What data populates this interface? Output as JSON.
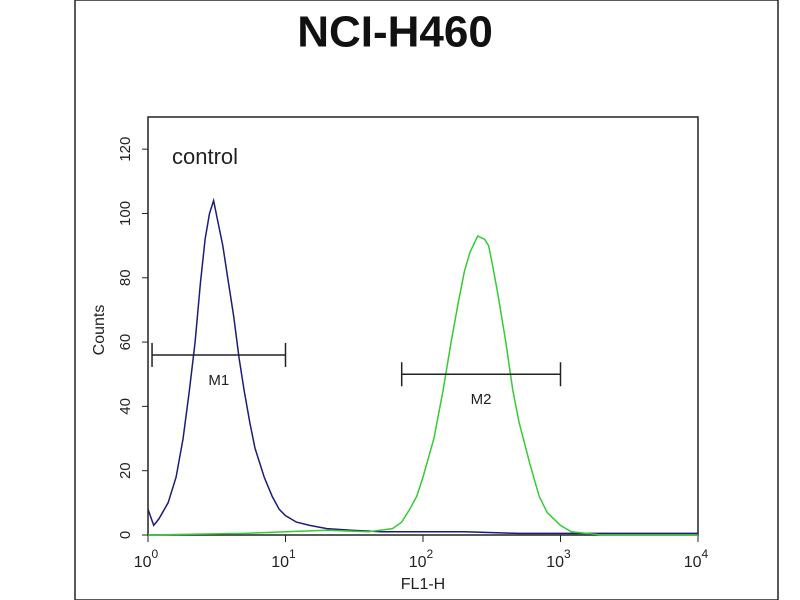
{
  "chart_data": {
    "type": "line",
    "title": "NCI-H460",
    "x_label": "FL1-H",
    "y_label": "Counts",
    "xlog": true,
    "xlim": [
      1,
      10000
    ],
    "ylim": [
      0,
      130
    ],
    "xticks": [
      {
        "value": 1,
        "label": "10",
        "exponent": "0"
      },
      {
        "value": 10,
        "label": "10",
        "exponent": "1"
      },
      {
        "value": 100,
        "label": "10",
        "exponent": "2"
      },
      {
        "value": 1000,
        "label": "10",
        "exponent": "3"
      },
      {
        "value": 10000,
        "label": "10",
        "exponent": "4"
      }
    ],
    "yticks": [
      0,
      20,
      40,
      60,
      80,
      100,
      120
    ],
    "series": [
      {
        "name": "control",
        "color": "#1c1c78",
        "x": [
          1.0,
          1.1,
          1.2,
          1.4,
          1.6,
          1.8,
          2.0,
          2.2,
          2.4,
          2.6,
          2.8,
          3.0,
          3.2,
          3.5,
          3.8,
          4.2,
          4.6,
          5.0,
          5.5,
          6.0,
          7.0,
          8.0,
          9.0,
          10,
          12,
          15,
          20,
          30,
          50,
          100,
          200,
          500,
          1000,
          10000
        ],
        "values": [
          8,
          3,
          5,
          10,
          18,
          30,
          45,
          60,
          78,
          92,
          100,
          104,
          98,
          90,
          80,
          68,
          55,
          45,
          35,
          27,
          18,
          12,
          8,
          6,
          4,
          3,
          2,
          1.5,
          1,
          1,
          1,
          0.5,
          0.5,
          0.5
        ]
      },
      {
        "color": "#33cc33",
        "x": [
          1,
          5,
          10,
          20,
          40,
          60,
          70,
          80,
          90,
          100,
          120,
          140,
          160,
          180,
          200,
          220,
          250,
          280,
          300,
          320,
          350,
          400,
          450,
          500,
          600,
          700,
          800,
          1000,
          1200,
          2000,
          10000
        ],
        "values": [
          0,
          0.5,
          1,
          1.5,
          1,
          2,
          4,
          8,
          12,
          18,
          30,
          45,
          60,
          72,
          82,
          88,
          93,
          92,
          90,
          84,
          75,
          60,
          45,
          35,
          22,
          12,
          7,
          3,
          1,
          0,
          0
        ]
      }
    ],
    "markers": [
      {
        "label": "M1",
        "range": [
          1.07,
          10
        ],
        "y": 56
      },
      {
        "label": "M2",
        "range": [
          70,
          1000
        ],
        "y": 50
      }
    ]
  }
}
